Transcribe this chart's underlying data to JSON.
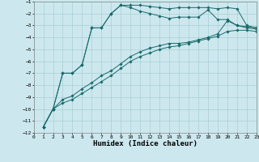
{
  "xlabel": "Humidex (Indice chaleur)",
  "ylabel": "",
  "xlim": [
    0,
    23
  ],
  "ylim": [
    -12,
    -1
  ],
  "background_color": "#cce8ee",
  "grid_color": "#aacdd6",
  "line_color": "#1a6b6b",
  "series": [
    {
      "x": [
        1,
        2,
        3,
        4,
        5,
        6,
        7,
        8,
        9,
        10,
        11,
        12,
        13,
        14,
        15,
        16,
        17,
        18,
        19,
        20,
        21,
        22,
        23
      ],
      "y": [
        -11.5,
        -10.0,
        -7.0,
        -7.0,
        -6.3,
        -3.2,
        -3.2,
        -2.0,
        -1.3,
        -1.3,
        -1.3,
        -1.4,
        -1.5,
        -1.6,
        -1.5,
        -1.5,
        -1.5,
        -1.5,
        -1.6,
        -1.5,
        -1.6,
        -3.0,
        -3.2
      ]
    },
    {
      "x": [
        1,
        2,
        3,
        4,
        5,
        6,
        7,
        8,
        9,
        10,
        11,
        12,
        13,
        14,
        15,
        16,
        17,
        18,
        19,
        20,
        21,
        22,
        23
      ],
      "y": [
        -11.5,
        -10.0,
        -7.0,
        -7.0,
        -6.3,
        -3.2,
        -3.2,
        -2.0,
        -1.3,
        -1.5,
        -1.8,
        -2.0,
        -2.2,
        -2.4,
        -2.3,
        -2.3,
        -2.3,
        -1.7,
        -2.5,
        -2.5,
        -3.0,
        -3.1,
        -3.2
      ]
    },
    {
      "x": [
        1,
        2,
        3,
        4,
        5,
        6,
        7,
        8,
        9,
        10,
        11,
        12,
        13,
        14,
        15,
        16,
        17,
        18,
        19,
        20,
        21,
        22,
        23
      ],
      "y": [
        -11.5,
        -10.0,
        -9.2,
        -8.9,
        -8.3,
        -7.8,
        -7.2,
        -6.8,
        -6.2,
        -5.6,
        -5.2,
        -4.9,
        -4.7,
        -4.5,
        -4.5,
        -4.4,
        -4.2,
        -4.0,
        -3.7,
        -2.6,
        -3.0,
        -3.2,
        -3.3
      ]
    },
    {
      "x": [
        1,
        2,
        3,
        4,
        5,
        6,
        7,
        8,
        9,
        10,
        11,
        12,
        13,
        14,
        15,
        16,
        17,
        18,
        19,
        20,
        21,
        22,
        23
      ],
      "y": [
        -11.5,
        -10.0,
        -9.5,
        -9.2,
        -8.7,
        -8.2,
        -7.7,
        -7.2,
        -6.6,
        -6.0,
        -5.6,
        -5.3,
        -5.0,
        -4.8,
        -4.7,
        -4.5,
        -4.3,
        -4.1,
        -3.9,
        -3.5,
        -3.4,
        -3.4,
        -3.5
      ]
    }
  ],
  "xticks": [
    0,
    1,
    2,
    3,
    4,
    5,
    6,
    7,
    8,
    9,
    10,
    11,
    12,
    13,
    14,
    15,
    16,
    17,
    18,
    19,
    20,
    21,
    22,
    23
  ],
  "yticks": [
    -12,
    -11,
    -10,
    -9,
    -8,
    -7,
    -6,
    -5,
    -4,
    -3,
    -2,
    -1
  ],
  "tick_fontsize": 4.5,
  "label_fontsize": 6.5,
  "linewidth": 0.7,
  "markersize": 1.8
}
